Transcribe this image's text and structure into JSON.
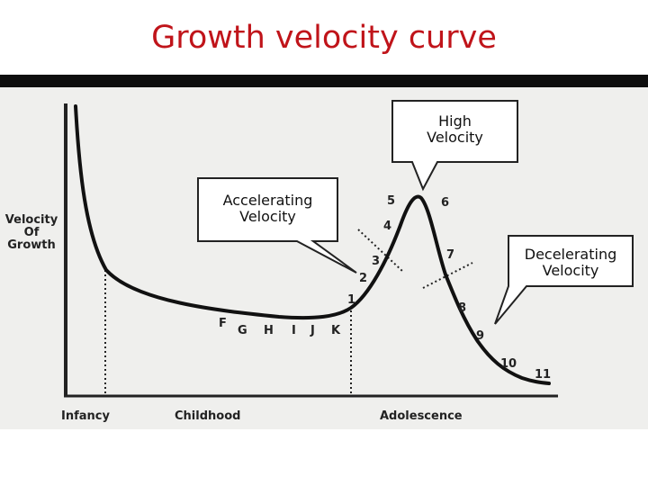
{
  "title": "Growth velocity curve",
  "axes": {
    "y_label_lines": [
      "Velocity",
      "Of",
      "Growth"
    ],
    "x_labels": [
      "Infancy",
      "Childhood",
      "Adolescence"
    ]
  },
  "callouts": {
    "high": [
      "High",
      "Velocity"
    ],
    "accelerating": [
      "Accelerating",
      "Velocity"
    ],
    "decelerating": [
      "Decelerating",
      "Velocity"
    ]
  },
  "curve_points": {
    "letters": [
      "F",
      "G",
      "H",
      "I",
      "J",
      "K"
    ],
    "numbers": [
      "1",
      "2",
      "3",
      "4",
      "5",
      "6",
      "7",
      "8",
      "9",
      "10",
      "11"
    ]
  },
  "colors": {
    "title": "#c0141a",
    "curve": "#111111",
    "band": "#0e0e0e",
    "scan_background": "#efefed"
  }
}
